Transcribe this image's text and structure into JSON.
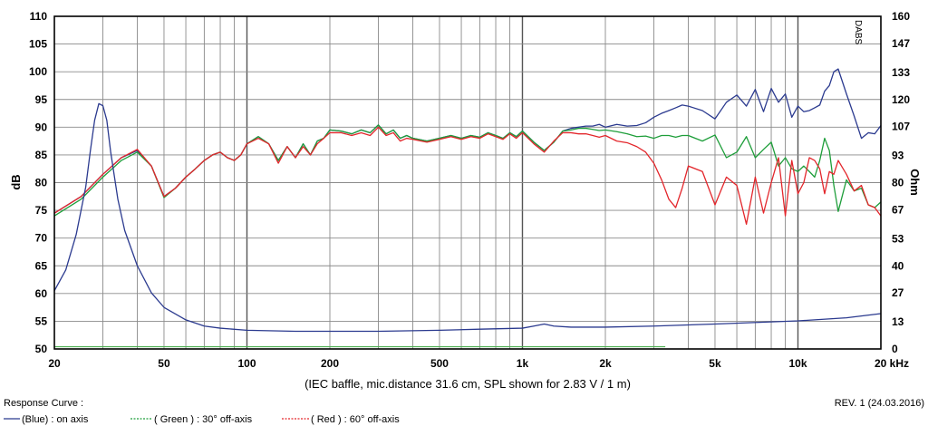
{
  "chart_data": {
    "type": "line",
    "title": "",
    "xlabel": "(IEC baffle, mic.distance 31.6 cm, SPL shown for 2.83 V / 1 m)",
    "ylabel": "dB",
    "y2label": "Ohm",
    "x_unit": "kHz",
    "xscale": "log",
    "xlim": [
      20,
      20000
    ],
    "ylim": [
      50,
      110
    ],
    "y2lim": [
      0,
      160
    ],
    "grid": true,
    "x_tick_labels": [
      {
        "value": 20,
        "label": "20"
      },
      {
        "value": 50,
        "label": "50"
      },
      {
        "value": 100,
        "label": "100"
      },
      {
        "value": 200,
        "label": "200"
      },
      {
        "value": 500,
        "label": "500"
      },
      {
        "value": 1000,
        "label": "1k"
      },
      {
        "value": 2000,
        "label": "2k"
      },
      {
        "value": 5000,
        "label": "5k"
      },
      {
        "value": 10000,
        "label": "10k"
      },
      {
        "value": 20000,
        "label": "20 kHz"
      }
    ],
    "y_ticks": [
      50,
      55,
      60,
      65,
      70,
      75,
      80,
      85,
      90,
      95,
      100,
      105,
      110
    ],
    "y2_ticks": [
      0,
      13,
      27,
      40,
      53,
      67,
      80,
      93,
      107,
      120,
      133,
      147,
      160
    ],
    "series": [
      {
        "name": "(Blue) : on axis",
        "color": "#2b3a8f",
        "x": [
          20,
          25,
          30,
          35,
          40,
          45,
          50,
          55,
          60,
          65,
          70,
          75,
          80,
          85,
          90,
          95,
          100,
          110,
          120,
          130,
          140,
          150,
          160,
          170,
          180,
          190,
          200,
          220,
          240,
          260,
          280,
          300,
          320,
          340,
          360,
          380,
          400,
          450,
          500,
          550,
          600,
          650,
          700,
          750,
          800,
          850,
          900,
          950,
          1000,
          1100,
          1200,
          1300,
          1400,
          1500,
          1600,
          1700,
          1800,
          1900,
          2000,
          2200,
          2400,
          2600,
          2800,
          3000,
          3200,
          3400,
          3600,
          3800,
          4000,
          4500,
          5000,
          5500,
          6000,
          6500,
          7000,
          7500,
          8000,
          8500,
          9000,
          9500,
          10000,
          10500,
          11000,
          11500,
          12000,
          12500,
          13000,
          13500,
          14000,
          15000,
          16000,
          17000,
          18000,
          19000,
          20000
        ],
        "y": [
          74.5,
          77.5,
          81.5,
          84.5,
          85.8,
          83,
          77.5,
          79,
          81,
          82.5,
          84,
          85,
          85.5,
          84.5,
          84,
          85,
          87,
          88.3,
          87,
          84,
          86.5,
          84.5,
          87,
          85,
          87.5,
          88,
          89.5,
          89.3,
          88.8,
          89.5,
          89,
          90.4,
          88.8,
          89.5,
          88,
          88.5,
          88,
          87.5,
          88,
          88.5,
          88,
          88.5,
          88.2,
          89,
          88.5,
          88,
          89,
          88.3,
          89.3,
          87.3,
          85.8,
          87.3,
          89.3,
          89.8,
          90,
          90.2,
          90.2,
          90.5,
          90,
          90.5,
          90.2,
          90.3,
          90.8,
          91.8,
          92.5,
          93,
          93.5,
          94,
          93.8,
          93,
          91.5,
          94.5,
          95.8,
          93.8,
          96.8,
          92.8,
          97,
          94.5,
          96,
          91.8,
          93.8,
          92.8,
          93,
          93.5,
          94,
          96.5,
          97.5,
          100,
          100.5,
          96,
          92,
          88,
          89,
          88.8,
          90.3
        ]
      },
      {
        "name": "( Green ) : 30° off-axis",
        "color": "#1e9e3a",
        "x": [
          20,
          25,
          30,
          35,
          40,
          45,
          50,
          55,
          60,
          65,
          70,
          75,
          80,
          85,
          90,
          95,
          100,
          110,
          120,
          130,
          140,
          150,
          160,
          170,
          180,
          190,
          200,
          220,
          240,
          260,
          280,
          300,
          320,
          340,
          360,
          380,
          400,
          450,
          500,
          550,
          600,
          650,
          700,
          750,
          800,
          850,
          900,
          950,
          1000,
          1100,
          1200,
          1300,
          1400,
          1500,
          1600,
          1700,
          1800,
          1900,
          2000,
          2200,
          2400,
          2600,
          2800,
          3000,
          3200,
          3400,
          3600,
          3800,
          4000,
          4500,
          5000,
          5500,
          6000,
          6500,
          7000,
          7500,
          8000,
          8500,
          9000,
          9500,
          10000,
          10500,
          11000,
          11500,
          12000,
          12500,
          13000,
          13500,
          14000,
          15000,
          16000,
          17000,
          18000,
          19000,
          20000
        ],
        "y": [
          74,
          77,
          81,
          84,
          85.5,
          83,
          77.3,
          79,
          81,
          82.5,
          84,
          85,
          85.5,
          84.5,
          84,
          85,
          87,
          88.3,
          87,
          84,
          86.5,
          84.5,
          87,
          85,
          87.5,
          88,
          89.5,
          89.3,
          88.8,
          89.5,
          89,
          90.4,
          88.8,
          89.5,
          88,
          88.5,
          88,
          87.5,
          88,
          88.5,
          88,
          88.5,
          88.2,
          89,
          88.5,
          88,
          89,
          88.3,
          89.3,
          87.3,
          85.8,
          87.3,
          89.3,
          89.5,
          89.8,
          89.8,
          89.6,
          89.4,
          89.5,
          89.2,
          88.8,
          88.3,
          88.4,
          88,
          88.5,
          88.5,
          88.2,
          88.5,
          88.5,
          87.5,
          88.6,
          84.5,
          85.5,
          88.3,
          84.5,
          86,
          87.3,
          83,
          84.5,
          82.5,
          82,
          83,
          82,
          81,
          84,
          88,
          85.8,
          79.5,
          74.8,
          80.5,
          78.5,
          79,
          76,
          75.5,
          76.5
        ]
      },
      {
        "name": "( Red ) : 60° off-axis",
        "color": "#e3262b",
        "x": [
          20,
          25,
          30,
          35,
          40,
          45,
          50,
          55,
          60,
          65,
          70,
          75,
          80,
          85,
          90,
          95,
          100,
          110,
          120,
          130,
          140,
          150,
          160,
          170,
          180,
          190,
          200,
          220,
          240,
          260,
          280,
          300,
          320,
          340,
          360,
          380,
          400,
          450,
          500,
          550,
          600,
          650,
          700,
          750,
          800,
          850,
          900,
          950,
          1000,
          1100,
          1200,
          1300,
          1400,
          1500,
          1600,
          1700,
          1800,
          1900,
          2000,
          2200,
          2400,
          2600,
          2800,
          3000,
          3200,
          3400,
          3600,
          3800,
          4000,
          4500,
          5000,
          5500,
          6000,
          6500,
          7000,
          7500,
          8000,
          8500,
          9000,
          9500,
          10000,
          10500,
          11000,
          11500,
          12000,
          12500,
          13000,
          13500,
          14000,
          15000,
          16000,
          17000,
          18000,
          19000,
          20000
        ],
        "y": [
          74.5,
          77.5,
          81.5,
          84.5,
          86,
          83,
          77.5,
          79,
          81,
          82.5,
          84,
          85,
          85.5,
          84.5,
          84,
          85,
          87,
          88,
          87,
          83.5,
          86.5,
          84.5,
          86.5,
          85,
          87,
          88,
          89,
          89,
          88.5,
          89,
          88.5,
          90,
          88.5,
          89,
          87.5,
          88,
          87.8,
          87.3,
          87.8,
          88.3,
          87.8,
          88.3,
          88,
          88.8,
          88.3,
          87.8,
          88.8,
          88,
          89,
          87,
          85.5,
          87.5,
          89,
          89,
          88.8,
          88.8,
          88.5,
          88.2,
          88.5,
          87.5,
          87.2,
          86.5,
          85.5,
          83.5,
          80.5,
          77,
          75.5,
          79,
          83,
          82,
          76,
          81,
          79.5,
          72.5,
          81,
          74.5,
          80,
          84.5,
          74,
          84,
          78,
          80,
          84.5,
          84,
          82.5,
          78,
          82,
          81.5,
          84,
          81.5,
          78.5,
          79.5,
          76,
          75.5,
          74
        ]
      },
      {
        "name": "Impedance",
        "axis": "right",
        "color": "#2b3a8f",
        "x": [
          20,
          22,
          24,
          26,
          27,
          28,
          29,
          30,
          31,
          32,
          34,
          36,
          40,
          45,
          50,
          60,
          70,
          80,
          100,
          150,
          200,
          300,
          500,
          700,
          1000,
          1100,
          1200,
          1300,
          1500,
          2000,
          3000,
          5000,
          10000,
          15000,
          20000
        ],
        "y": [
          28,
          38,
          55,
          78,
          95,
          110,
          118,
          117,
          110,
          95,
          72,
          57,
          40,
          27,
          20,
          14,
          11,
          10,
          9,
          8.5,
          8.5,
          8.5,
          9,
          9.5,
          10,
          11,
          12,
          11,
          10.5,
          10.5,
          11,
          12,
          13.5,
          15,
          17
        ]
      },
      {
        "name": "Baseline",
        "axis": "left",
        "color": "#4caf50",
        "x": [
          20,
          3300
        ],
        "y": [
          50.4,
          50.4
        ]
      }
    ]
  },
  "legend": {
    "title": "Response Curve :",
    "items": [
      {
        "label": "(Blue) : on axis",
        "color": "#2b3a8f"
      },
      {
        "label": "( Green ) : 30° off-axis",
        "color": "#1e9e3a"
      },
      {
        "label": "( Red ) : 60° off-axis",
        "color": "#e3262b"
      }
    ]
  },
  "revision": "REV. 1 (24.03.2016)",
  "side_mark": "DABS"
}
